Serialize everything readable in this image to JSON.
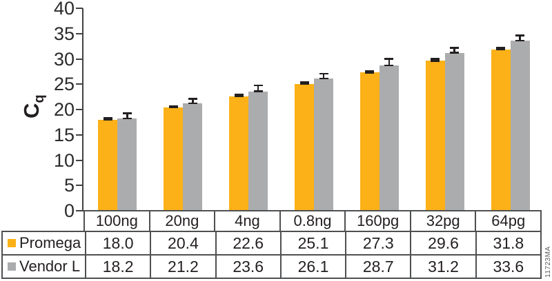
{
  "watermark": "11723MA",
  "colors": {
    "promega_orange": "#FBB117",
    "vendor_gray": "#ABACAE",
    "error_bar_black": "#231F20",
    "axis_gray": "#414042",
    "table_border_gray": "#4E4F51",
    "text_black": "#231F20"
  },
  "chart_data": {
    "type": "bar",
    "title": "",
    "ylabel": "Cq",
    "ylabel_main": "C",
    "ylabel_sub": "q",
    "xlabel": "",
    "ylim": [
      0,
      40
    ],
    "yticks": [
      0,
      5,
      10,
      15,
      20,
      25,
      30,
      35,
      40
    ],
    "grid": false,
    "legend_position": "table-left",
    "categories": [
      "100ng",
      "20ng",
      "4ng",
      "0.8ng",
      "160pg",
      "32pg",
      "64pg"
    ],
    "series": [
      {
        "name": "Promega",
        "color": "#FBB117",
        "values": [
          18.0,
          20.4,
          22.6,
          25.1,
          27.3,
          29.6,
          31.8
        ],
        "errors_up": [
          0.3,
          0.25,
          0.3,
          0.3,
          0.35,
          0.4,
          0.35
        ]
      },
      {
        "name": "Vendor L",
        "color": "#ABACAE",
        "values": [
          18.2,
          21.2,
          23.6,
          26.1,
          28.7,
          31.2,
          33.6
        ],
        "errors_up": [
          1.1,
          0.9,
          1.2,
          1.0,
          1.3,
          1.0,
          1.0
        ]
      }
    ]
  },
  "table": {
    "column_headers": [
      "100ng",
      "20ng",
      "4ng",
      "0.8ng",
      "160pg",
      "32pg",
      "64pg"
    ],
    "rows": [
      {
        "label": "Promega",
        "values": [
          "18.0",
          "20.4",
          "22.6",
          "25.1",
          "27.3",
          "29.6",
          "31.8"
        ]
      },
      {
        "label": "Vendor L",
        "values": [
          "18.2",
          "21.2",
          "23.6",
          "26.1",
          "28.7",
          "31.2",
          "33.6"
        ]
      }
    ]
  }
}
